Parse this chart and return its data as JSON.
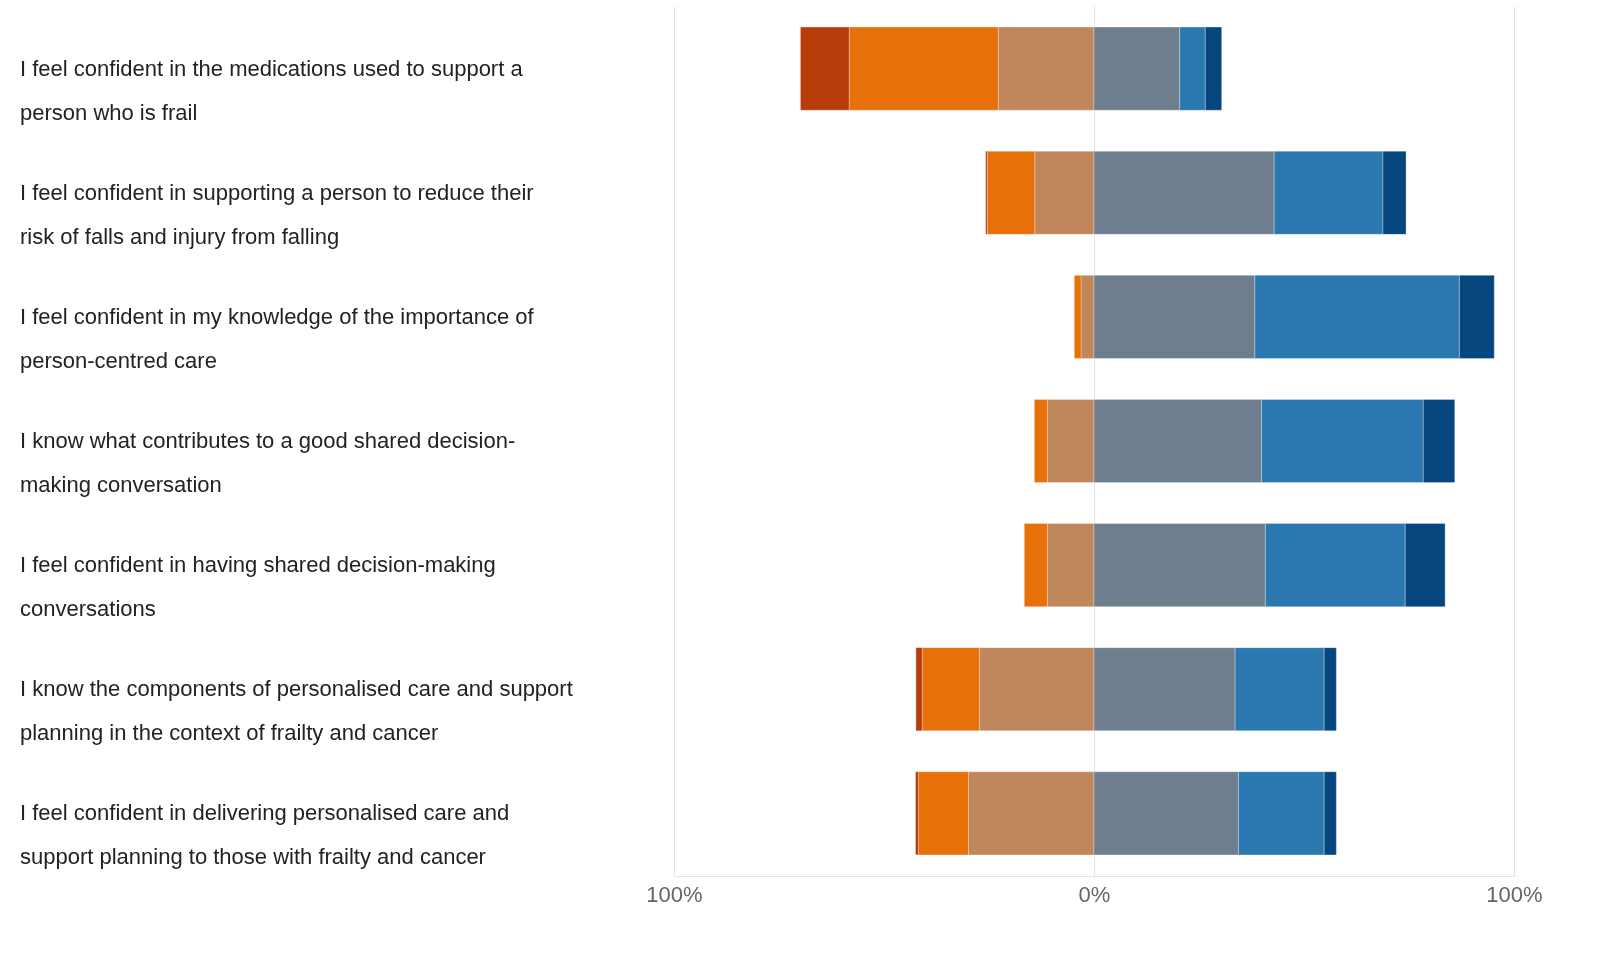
{
  "chart_data": {
    "type": "bar",
    "orientation": "horizontal",
    "stacked": true,
    "categories": [
      "I feel confident in the medications used to support a person who is frail",
      "I feel confident in supporting a person to reduce their risk of falls and injury from falling",
      "I feel confident in my knowledge of the importance of person-centred care",
      "I know what contributes to a good shared decision-making conversation",
      "I feel confident in having shared decision-making conversations",
      "I know the components of personalised care and support planning in the context of frailty and cancer",
      "I feel confident in delivering personalised care and support planning to those with frailty and cancer"
    ],
    "series": [
      {
        "color": "#c0875c",
        "values": [
          -22.8,
          -14.1,
          -3.1,
          -11.1,
          -11.1,
          -27.3,
          -29.9
        ]
      },
      {
        "color": "#e87008",
        "values": [
          -35.5,
          -11.3,
          -1.6,
          -3.1,
          -5.5,
          -13.6,
          -11.9
        ]
      },
      {
        "color": "#b83c0a",
        "values": [
          -11.6,
          -0.4,
          null,
          null,
          null,
          -1.5,
          -0.7
        ]
      },
      {
        "color": "#6f7e8e",
        "values": [
          20.4,
          42.9,
          38.3,
          39.9,
          40.8,
          33.6,
          34.4
        ]
      },
      {
        "color": "#2b78b0",
        "values": [
          6.1,
          25.9,
          48.7,
          38.5,
          33.3,
          21.2,
          20.4
        ]
      },
      {
        "color": "#05467e",
        "values": [
          3.9,
          5.5,
          8.3,
          7.5,
          9.5,
          2.9,
          2.9
        ]
      }
    ],
    "xlim": [
      -100,
      100
    ],
    "xticks": [
      {
        "value": -100,
        "label": "100%"
      },
      {
        "value": 0,
        "label": "0%"
      },
      {
        "value": 100,
        "label": "100%"
      }
    ],
    "grid": "x",
    "legend": false
  }
}
